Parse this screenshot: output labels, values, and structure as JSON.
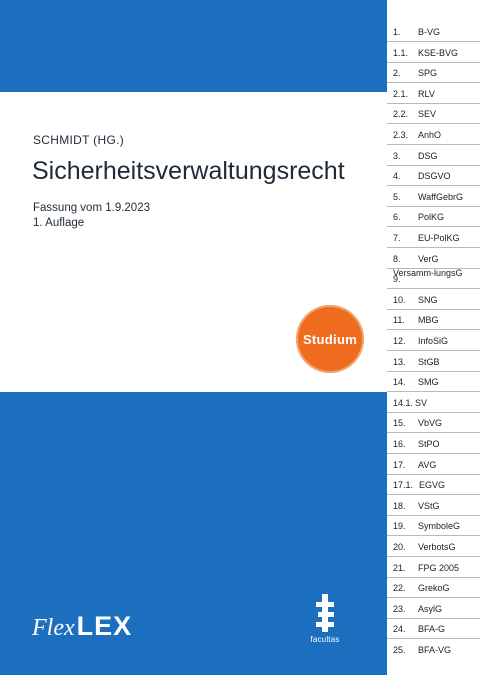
{
  "cover": {
    "editor": "SCHMIDT (HG.)",
    "title": "Sicherheitsverwaltungsrecht",
    "version": "Fassung vom 1.9.2023",
    "edition": "1. Auflage",
    "badge": "Studium",
    "brand_flex": "Flex",
    "brand_lex": "LEX",
    "publisher": "facultas"
  },
  "colors": {
    "blue": "#1c6fbe",
    "orange": "#ef6c1f"
  },
  "tabs": [
    {
      "num": "1.",
      "label": "B-VG"
    },
    {
      "num": "1.1.",
      "label": "KSE-BVG"
    },
    {
      "num": "2.",
      "label": "SPG"
    },
    {
      "num": "2.1.",
      "label": "RLV"
    },
    {
      "num": "2.2.",
      "label": "SEV"
    },
    {
      "num": "2.3.",
      "label": "AnhO"
    },
    {
      "num": "3.",
      "label": "DSG"
    },
    {
      "num": "4.",
      "label": "DSGVO"
    },
    {
      "num": "5.",
      "label": "WaffGebrG"
    },
    {
      "num": "6.",
      "label": "PolKG"
    },
    {
      "num": "7.",
      "label": "EU-PolKG"
    },
    {
      "num": "8.",
      "label": "VerG"
    },
    {
      "num": "9.",
      "label": "Versamm-lungsG"
    },
    {
      "num": "10.",
      "label": "SNG"
    },
    {
      "num": "11.",
      "label": "MBG"
    },
    {
      "num": "12.",
      "label": "InfoSiG"
    },
    {
      "num": "13.",
      "label": "StGB"
    },
    {
      "num": "14.",
      "label": "SMG"
    },
    {
      "num": "14.1.",
      "label": "SV"
    },
    {
      "num": "15.",
      "label": "VbVG"
    },
    {
      "num": "16.",
      "label": "StPO"
    },
    {
      "num": "17.",
      "label": "AVG"
    },
    {
      "num": "17.1.",
      "label": "EGVG"
    },
    {
      "num": "18.",
      "label": "VStG"
    },
    {
      "num": "19.",
      "label": "SymboleG"
    },
    {
      "num": "20.",
      "label": "VerbotsG"
    },
    {
      "num": "21.",
      "label": "FPG 2005"
    },
    {
      "num": "22.",
      "label": "GrekoG"
    },
    {
      "num": "23.",
      "label": "AsylG"
    },
    {
      "num": "24.",
      "label": "BFA-G"
    },
    {
      "num": "25.",
      "label": "BFA-VG"
    }
  ]
}
